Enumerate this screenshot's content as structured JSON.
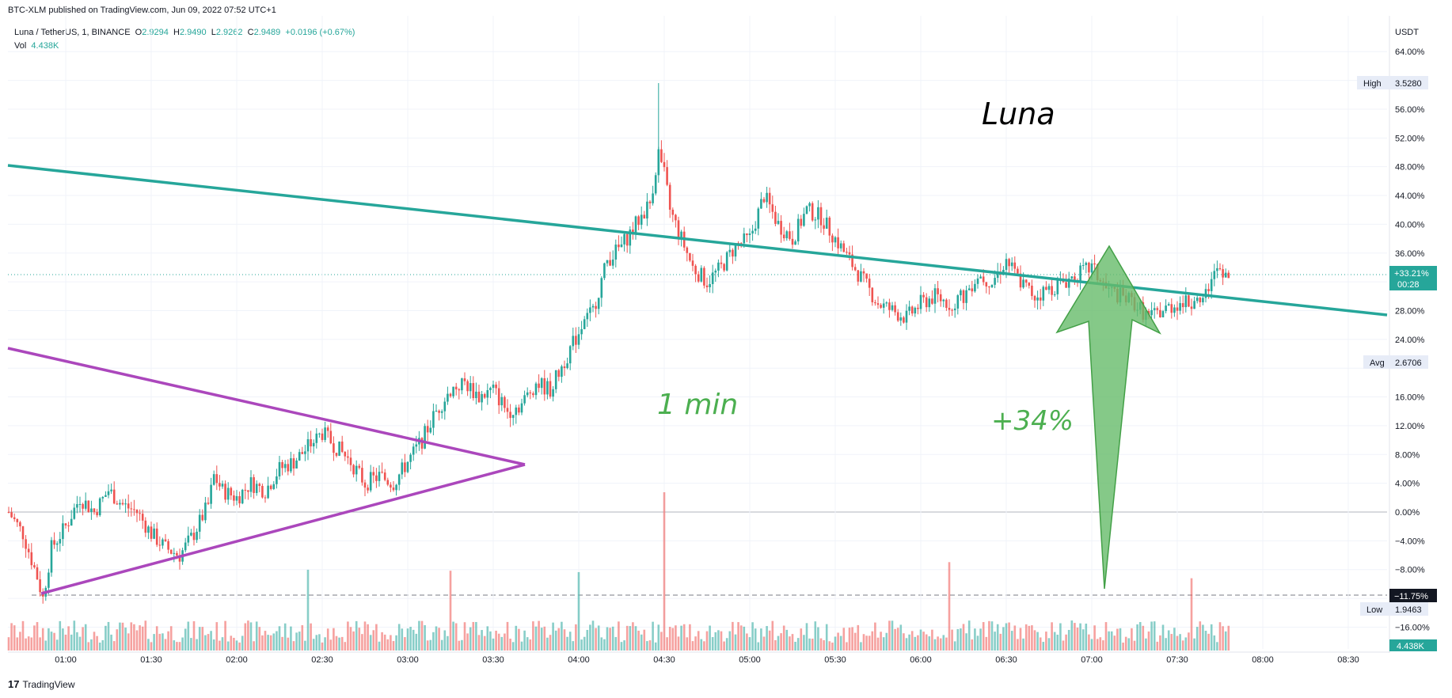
{
  "header": {
    "publish_line": "BTC-XLM published on TradingView.com, Jun 09, 2022 07:52 UTC+1",
    "symbol_line": "Luna / TetherUS, 1, BINANCE",
    "open_label": "O",
    "open": "2.9294",
    "high_label": "H",
    "high": "2.9490",
    "low_label": "L",
    "low": "2.9262",
    "close_label": "C",
    "close": "2.9489",
    "change": "+0.0196 (+0.67%)",
    "vol_label": "Vol",
    "vol_value": "4.438K"
  },
  "footer": {
    "brand": "TradingView",
    "logo": "17"
  },
  "annotations": {
    "title": "Luna",
    "timeframe": "1 min",
    "gain": "+34%"
  },
  "axis": {
    "currency": "USDT",
    "price_labels": [
      {
        "label": "High",
        "value": "3.5280"
      },
      {
        "label": "Avg",
        "value": "2.6706"
      },
      {
        "label": "Low",
        "value": "1.9463"
      }
    ],
    "last_price": {
      "pct": "+33.21%",
      "timer": "00:28"
    },
    "low_line": "−11.75%",
    "volume_badge": "4.438K"
  },
  "colors": {
    "up": "#26a69a",
    "down": "#ef5350",
    "trend": "#26a69a",
    "triangle": "#ab47bc",
    "arrow": "#66bb6a"
  },
  "chart_data": {
    "type": "candlestick",
    "title": "",
    "y_unit": "percent change",
    "yticks": [
      64,
      60,
      56,
      52,
      48,
      44,
      40,
      36,
      32,
      28,
      24,
      20,
      16,
      12,
      8,
      4,
      0,
      -4,
      -8,
      -12,
      -16
    ],
    "ytick_labels": [
      "64.00%",
      "",
      "56.00%",
      "52.00%",
      "48.00%",
      "44.00%",
      "40.00%",
      "36.00%",
      "",
      "28.00%",
      "24.00%",
      "",
      "16.00%",
      "12.00%",
      "8.00%",
      "4.00%",
      "0.00%",
      "−4.00%",
      "−8.00%",
      "",
      "−16.00%"
    ],
    "ylim": [
      -19,
      68
    ],
    "x_ticks": [
      "01:00",
      "01:30",
      "02:00",
      "02:30",
      "03:00",
      "03:30",
      "04:00",
      "04:30",
      "05:00",
      "05:30",
      "06:00",
      "06:30",
      "07:00",
      "07:30",
      "08:00",
      "08:30"
    ],
    "x_tick_minutes": [
      60,
      90,
      120,
      150,
      180,
      210,
      240,
      270,
      300,
      330,
      360,
      390,
      420,
      450,
      480,
      510
    ],
    "xlim_minutes": [
      40,
      525
    ],
    "price_path": [
      [
        40,
        0
      ],
      [
        45,
        -3
      ],
      [
        50,
        -9
      ],
      [
        52,
        -12
      ],
      [
        55,
        -5
      ],
      [
        60,
        -2
      ],
      [
        65,
        2
      ],
      [
        70,
        0
      ],
      [
        75,
        3
      ],
      [
        80,
        1
      ],
      [
        85,
        0
      ],
      [
        90,
        -3
      ],
      [
        95,
        -5
      ],
      [
        100,
        -6
      ],
      [
        105,
        -3
      ],
      [
        110,
        1
      ],
      [
        112,
        5
      ],
      [
        115,
        3
      ],
      [
        120,
        2
      ],
      [
        125,
        4
      ],
      [
        130,
        3
      ],
      [
        135,
        6
      ],
      [
        140,
        7
      ],
      [
        145,
        9
      ],
      [
        150,
        11
      ],
      [
        155,
        9
      ],
      [
        160,
        7
      ],
      [
        165,
        4
      ],
      [
        170,
        5
      ],
      [
        175,
        4
      ],
      [
        180,
        7
      ],
      [
        185,
        10
      ],
      [
        190,
        14
      ],
      [
        195,
        17
      ],
      [
        200,
        18
      ],
      [
        205,
        16
      ],
      [
        210,
        17
      ],
      [
        215,
        14
      ],
      [
        220,
        15
      ],
      [
        225,
        18
      ],
      [
        230,
        17
      ],
      [
        235,
        21
      ],
      [
        240,
        25
      ],
      [
        245,
        28
      ],
      [
        250,
        35
      ],
      [
        255,
        37
      ],
      [
        260,
        40
      ],
      [
        265,
        43
      ],
      [
        268,
        50
      ],
      [
        270,
        47
      ],
      [
        272,
        42
      ],
      [
        275,
        39
      ],
      [
        280,
        34
      ],
      [
        285,
        32
      ],
      [
        290,
        34
      ],
      [
        295,
        37
      ],
      [
        300,
        38
      ],
      [
        305,
        44
      ],
      [
        310,
        40
      ],
      [
        315,
        38
      ],
      [
        320,
        42
      ],
      [
        325,
        41
      ],
      [
        330,
        38
      ],
      [
        335,
        35
      ],
      [
        340,
        32
      ],
      [
        345,
        29
      ],
      [
        350,
        28
      ],
      [
        355,
        27
      ],
      [
        360,
        29
      ],
      [
        365,
        30
      ],
      [
        370,
        29
      ],
      [
        375,
        30
      ],
      [
        380,
        33
      ],
      [
        385,
        32
      ],
      [
        390,
        35
      ],
      [
        395,
        32
      ],
      [
        400,
        30
      ],
      [
        405,
        31
      ],
      [
        410,
        32
      ],
      [
        415,
        33
      ],
      [
        420,
        34
      ],
      [
        425,
        31
      ],
      [
        430,
        30
      ],
      [
        435,
        29
      ],
      [
        440,
        27
      ],
      [
        445,
        28
      ],
      [
        450,
        29
      ],
      [
        455,
        29
      ],
      [
        460,
        31
      ],
      [
        465,
        34
      ],
      [
        468,
        33
      ]
    ],
    "volume_spikes_minutes": [
      270,
      195,
      145,
      240,
      370,
      455
    ]
  }
}
